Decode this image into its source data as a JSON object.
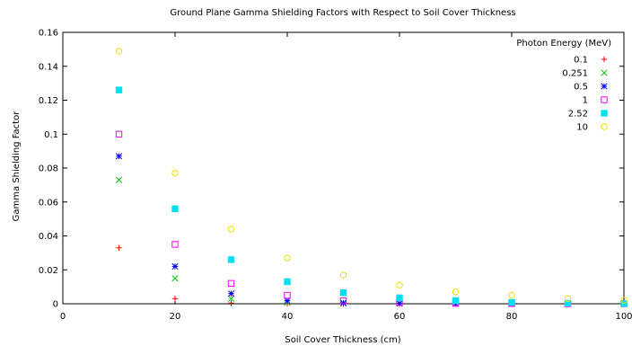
{
  "chart_data": {
    "type": "scatter",
    "title": "Ground Plane Gamma Shielding Factors with Respect to Soil Cover Thickness",
    "xlabel": "Soil Cover Thickness (cm)",
    "ylabel": "Gamma Shielding Factor",
    "xlim": [
      0,
      100
    ],
    "ylim": [
      0,
      0.16
    ],
    "xticks": [
      0,
      20,
      40,
      60,
      80,
      100
    ],
    "yticks": [
      0,
      0.02,
      0.04,
      0.06,
      0.08,
      0.1,
      0.12,
      0.14,
      0.16
    ],
    "legend_title": "Photon Energy (MeV)",
    "legend_position": "top-right",
    "grid": false,
    "x": [
      10,
      20,
      30,
      40,
      50,
      60,
      70,
      80,
      90,
      100
    ],
    "series": [
      {
        "name": "0.1",
        "marker": "plus",
        "color": "#ff0000",
        "values": [
          0.033,
          0.003,
          0.0004,
          0.0001,
          0.0,
          0.0,
          0.0,
          0.0,
          0.0,
          0.0
        ]
      },
      {
        "name": "0.251",
        "marker": "cross",
        "color": "#00c000",
        "values": [
          0.073,
          0.015,
          0.003,
          0.0007,
          0.0002,
          0.0,
          0.0,
          0.0,
          0.0,
          0.0
        ]
      },
      {
        "name": "0.5",
        "marker": "star",
        "color": "#0000ff",
        "values": [
          0.087,
          0.022,
          0.006,
          0.0018,
          0.0005,
          0.0002,
          0.0,
          0.0,
          0.0,
          0.0
        ]
      },
      {
        "name": "1",
        "marker": "open-square",
        "color": "#ff00ff",
        "values": [
          0.1,
          0.035,
          0.012,
          0.005,
          0.0018,
          0.0007,
          0.0003,
          0.0001,
          0.0,
          0.0
        ]
      },
      {
        "name": "2.52",
        "marker": "filled-square",
        "color": "#00e0f0",
        "values": [
          0.126,
          0.056,
          0.026,
          0.013,
          0.0065,
          0.0035,
          0.0018,
          0.0008,
          0.0003,
          0.0001
        ]
      },
      {
        "name": "10",
        "marker": "open-circle",
        "color": "#f0e000",
        "values": [
          0.149,
          0.077,
          0.044,
          0.027,
          0.017,
          0.011,
          0.007,
          0.005,
          0.003,
          0.002
        ]
      }
    ]
  }
}
